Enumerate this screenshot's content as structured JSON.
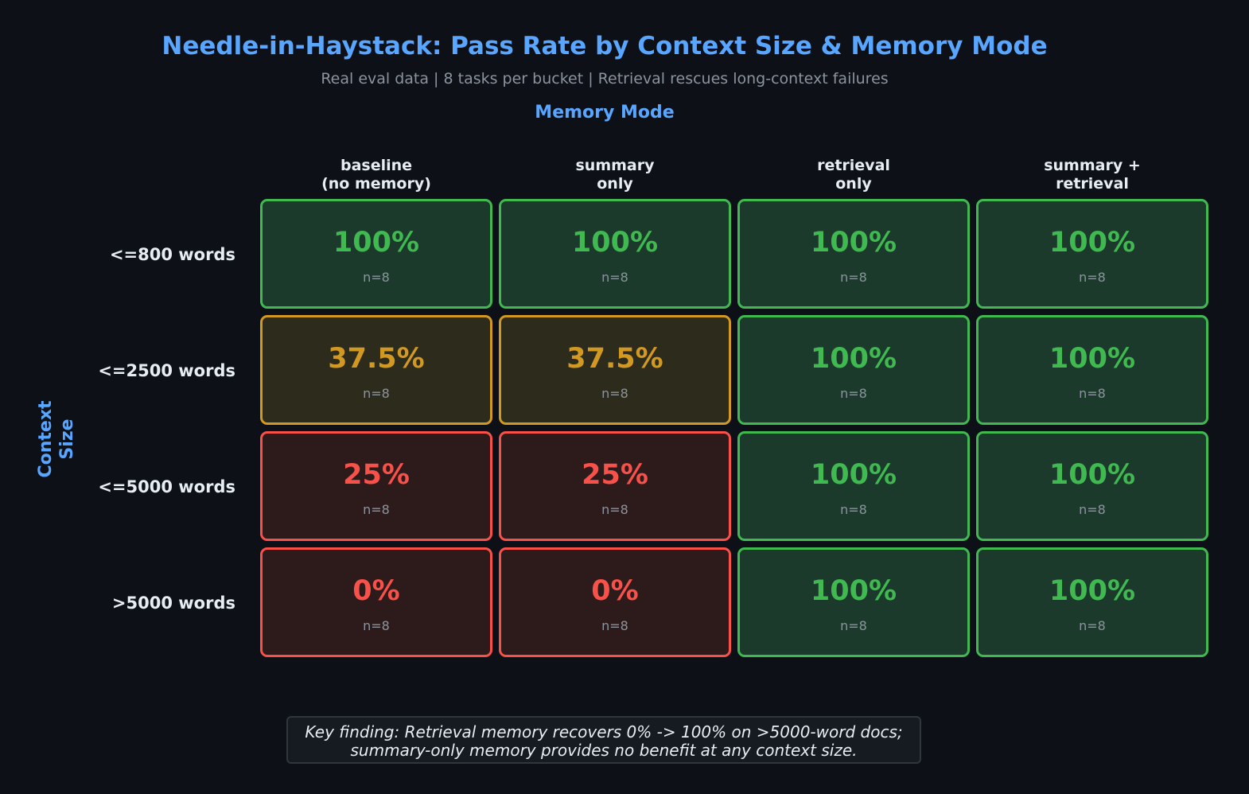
{
  "chart_data": {
    "type": "heatmap",
    "title": "Needle-in-Haystack: Pass Rate by Context Size & Memory Mode",
    "subtitle": "Real eval data  |  8 tasks per bucket  |  Retrieval rescues long-context failures",
    "xlabel": "Memory Mode",
    "ylabel": "Context\nSize",
    "columns": [
      "baseline\n(no memory)",
      "summary\nonly",
      "retrieval\nonly",
      "summary +\nretrieval"
    ],
    "rows": [
      "<=800 words",
      "<=2500 words",
      "<=5000 words",
      ">5000 words"
    ],
    "values": [
      [
        100,
        100,
        100,
        100
      ],
      [
        37.5,
        37.5,
        100,
        100
      ],
      [
        25,
        25,
        100,
        100
      ],
      [
        0,
        0,
        100,
        100
      ]
    ],
    "labels": [
      [
        "100%",
        "100%",
        "100%",
        "100%"
      ],
      [
        "37.5%",
        "37.5%",
        "100%",
        "100%"
      ],
      [
        "25%",
        "25%",
        "100%",
        "100%"
      ],
      [
        "0%",
        "0%",
        "100%",
        "100%"
      ]
    ],
    "n_labels": [
      [
        "n=8",
        "n=8",
        "n=8",
        "n=8"
      ],
      [
        "n=8",
        "n=8",
        "n=8",
        "n=8"
      ],
      [
        "n=8",
        "n=8",
        "n=8",
        "n=8"
      ],
      [
        "n=8",
        "n=8",
        "n=8",
        "n=8"
      ]
    ],
    "annotation": "Key finding: Retrieval memory recovers 0% -> 100% on >5000-word docs;\nsummary-only memory provides no benefit at any context size.",
    "colors": {
      "background": "#0d1017",
      "high": {
        "border": "#3fb950",
        "fill": "#1b3a2b",
        "text": "#3fb950"
      },
      "mid": {
        "border": "#d29922",
        "fill": "#2d2b1c",
        "text": "#d29922"
      },
      "low": {
        "border": "#f85149",
        "fill": "#2d1b1c",
        "text": "#f85149"
      },
      "accent": "#58a6ff"
    }
  }
}
